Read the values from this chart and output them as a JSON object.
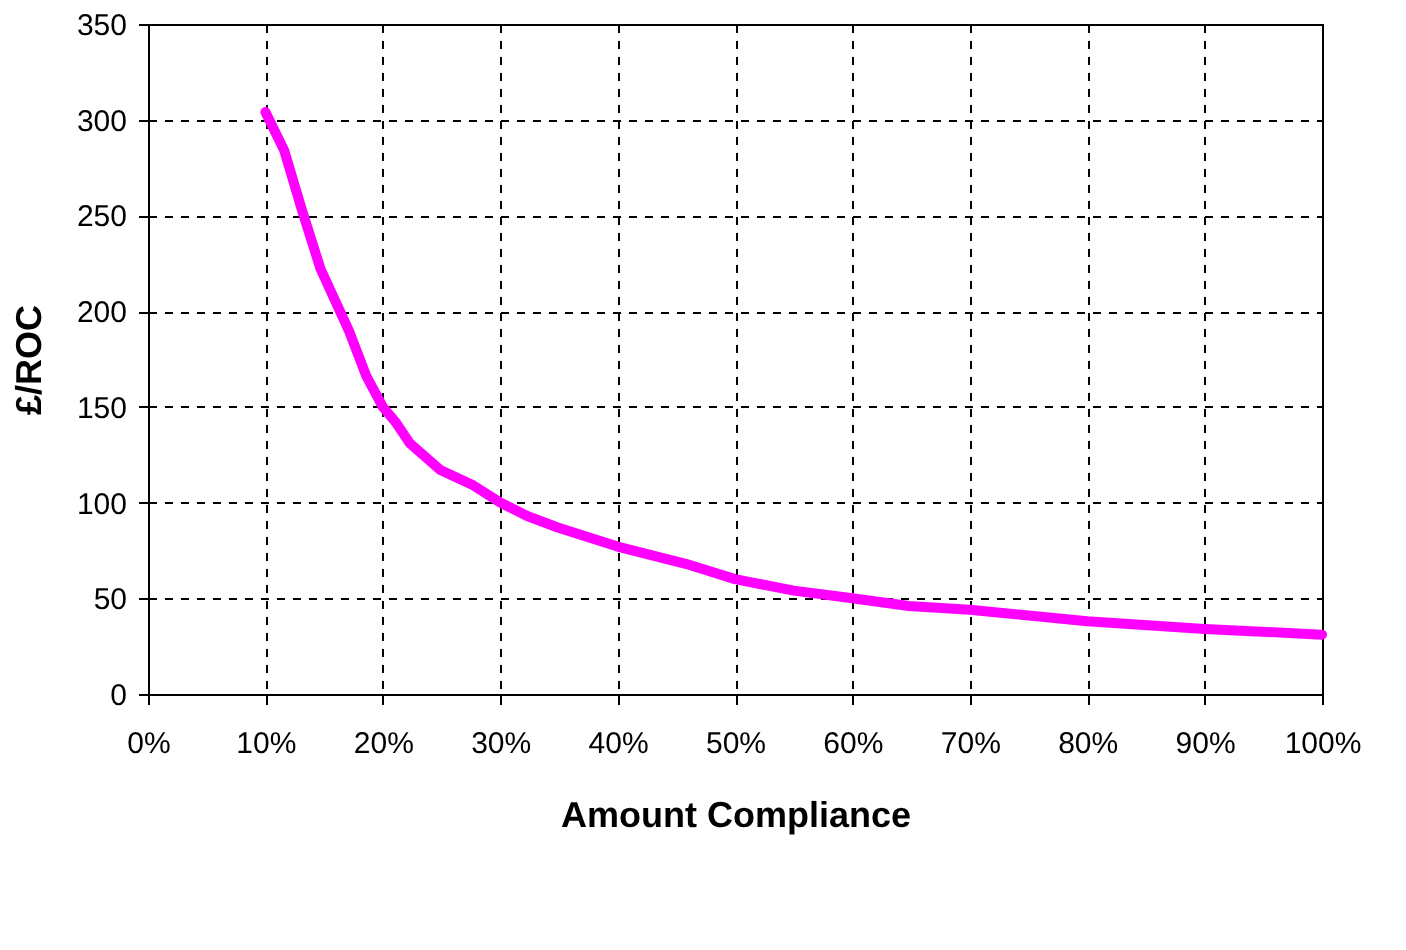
{
  "chart_data": {
    "type": "line",
    "xlabel": "Amount Compliance",
    "ylabel": "£/ROC",
    "x": [
      10,
      11.6,
      13.1,
      14.7,
      17.1,
      18.6,
      20,
      21.1,
      22.3,
      24.9,
      27.7,
      30,
      32.3,
      34.9,
      40,
      45.8,
      50,
      55,
      60,
      64.8,
      70,
      80,
      90,
      100
    ],
    "series": [
      {
        "color": "#ff00ff",
        "values": [
          304,
          284,
          253,
          222,
          190,
          166,
          150,
          142,
          131,
          117,
          109,
          100,
          93,
          87,
          77,
          68,
          60,
          54,
          50,
          46,
          44,
          38,
          34,
          31
        ]
      }
    ],
    "xlim": [
      0,
      100
    ],
    "xticks": [
      {
        "value": 0,
        "label": "0%"
      },
      {
        "value": 10,
        "label": "10%"
      },
      {
        "value": 20,
        "label": "20%"
      },
      {
        "value": 30,
        "label": "30%"
      },
      {
        "value": 40,
        "label": "40%"
      },
      {
        "value": 50,
        "label": "50%"
      },
      {
        "value": 60,
        "label": "60%"
      },
      {
        "value": 70,
        "label": "70%"
      },
      {
        "value": 80,
        "label": "80%"
      },
      {
        "value": 90,
        "label": "90%"
      },
      {
        "value": 100,
        "label": "100%"
      }
    ],
    "ylim": [
      0,
      350
    ],
    "yticks": [
      0,
      50,
      100,
      150,
      200,
      250,
      300,
      350
    ],
    "grid": true,
    "marker": "none",
    "line_style": "solid"
  }
}
